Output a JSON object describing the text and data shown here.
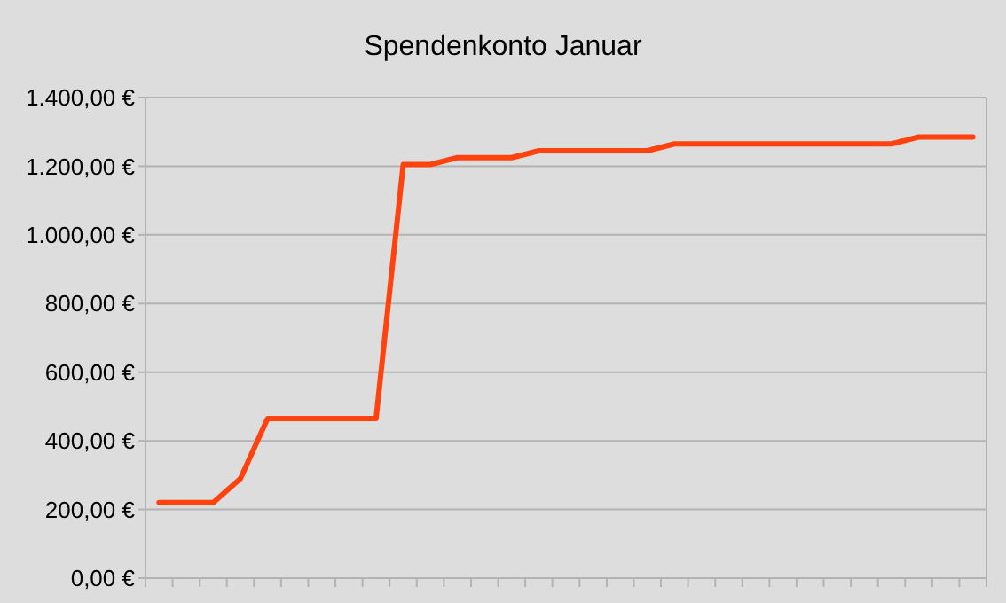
{
  "chart_data": {
    "type": "line",
    "title": "Spendenkonto Januar",
    "categories": [
      null,
      null,
      null,
      null,
      null,
      null,
      null,
      null,
      null,
      null,
      null,
      null,
      null,
      null,
      null,
      null,
      null,
      null,
      null,
      null,
      null,
      null,
      null,
      null,
      null,
      null,
      null,
      null,
      null,
      null,
      null
    ],
    "series": [
      {
        "color": "#ff420e",
        "values": [
          220,
          220,
          220,
          290,
          465,
          465,
          465,
          465,
          465,
          1205,
          1205,
          1225,
          1225,
          1225,
          1245,
          1245,
          1245,
          1245,
          1245,
          1265,
          1265,
          1265,
          1265,
          1265,
          1265,
          1265,
          1265,
          1265,
          1285,
          1285,
          1285
        ]
      }
    ],
    "ylim": [
      0,
      1400
    ],
    "yticks": [
      {
        "value": 0,
        "label": "0,00 €"
      },
      {
        "value": 200,
        "label": "200,00 €"
      },
      {
        "value": 400,
        "label": "400,00 €"
      },
      {
        "value": 600,
        "label": "600,00 €"
      },
      {
        "value": 800,
        "label": "800,00 €"
      },
      {
        "value": 1000,
        "label": "1.000,00 €"
      },
      {
        "value": 1200,
        "label": "1.200,00 €"
      },
      {
        "value": 1400,
        "label": "1.400,00 €"
      }
    ],
    "grid": "y",
    "marker": "none",
    "line_style": "solid"
  }
}
